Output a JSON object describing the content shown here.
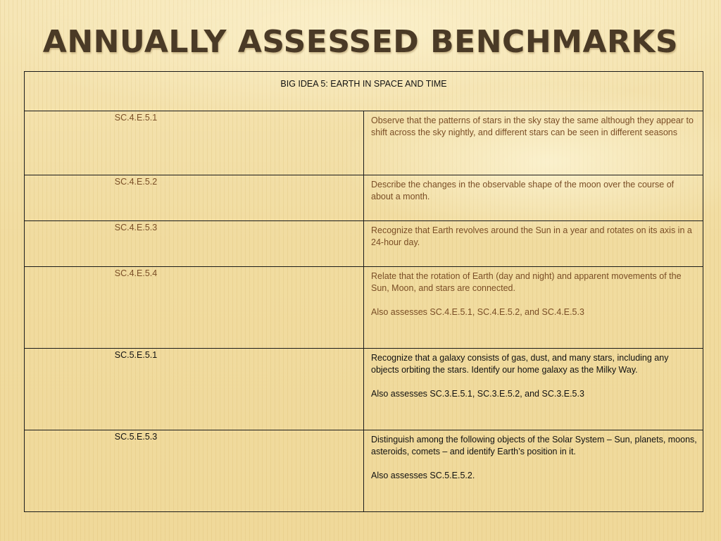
{
  "slide": {
    "title": "ANNUALLY ASSESSED BENCHMARKS"
  },
  "table": {
    "header": "BIG IDEA 5: EARTH IN SPACE AND TIME",
    "rows": [
      {
        "code": "SC.4.E.5.1",
        "description": "Observe that the patterns of stars in the sky stay the same although they appear to shift across the sky nightly, and different stars can be seen in different seasons",
        "also": ""
      },
      {
        "code": "SC.4.E.5.2",
        "description": "Describe the changes in the observable shape of the moon over the course of about a month.",
        "also": ""
      },
      {
        "code": "SC.4.E.5.3",
        "description": "Recognize that Earth revolves around the Sun in a year and rotates on its axis in a 24-hour day.",
        "also": ""
      },
      {
        "code": "SC.4.E.5.4",
        "description": "Relate that the rotation of Earth (day and night) and apparent movements of the Sun, Moon, and stars are connected.",
        "also": "Also assesses SC.4.E.5.1, SC.4.E.5.2, and SC.4.E.5.3"
      },
      {
        "code": "SC.5.E.5.1",
        "description": "Recognize that a galaxy consists of gas, dust, and many stars, including any objects orbiting the stars. Identify our home galaxy as the Milky Way.",
        "also": "Also assesses SC.3.E.5.1, SC.3.E.5.2, and SC.3.E.5.3"
      },
      {
        "code": "SC.5.E.5.3",
        "description": "Distinguish among the following objects of the Solar System – Sun, planets, moons, asteroids, comets – and identify Earth’s position in it.",
        "also": "Also assesses SC.5.E.5.2."
      }
    ]
  },
  "colors": {
    "grade4_text": "#7a4e26",
    "grade5_text": "#111111",
    "title_text": "#4a3a26"
  }
}
